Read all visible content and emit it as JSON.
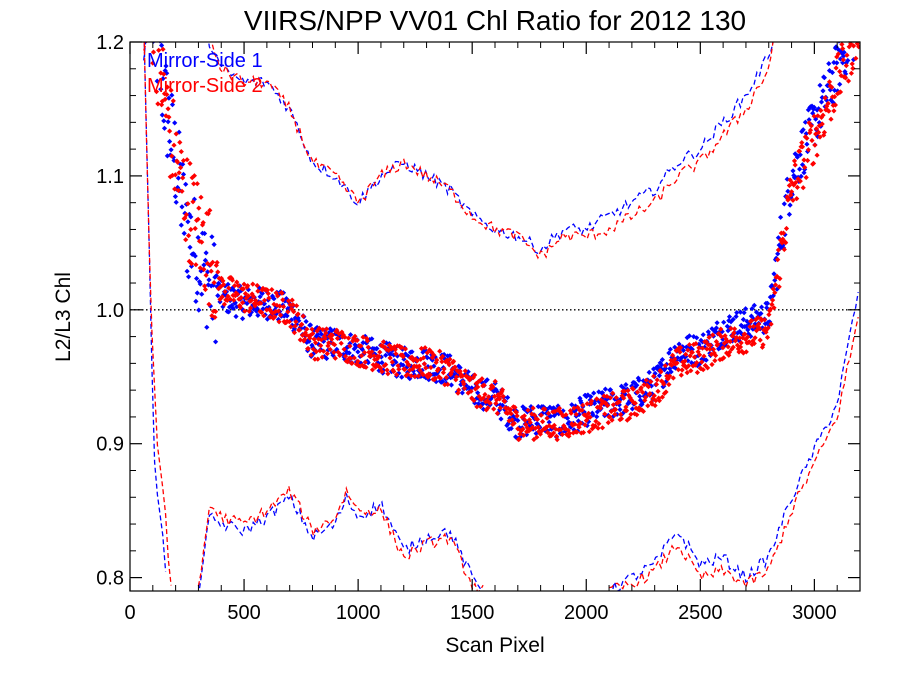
{
  "chart_data": {
    "type": "scatter",
    "title": "VIIRS/NPP VV01 Chl Ratio for 2012 130",
    "xlabel": "Scan Pixel",
    "ylabel": "L2/L3 Chl",
    "xlim": [
      0,
      3200
    ],
    "ylim": [
      0.79,
      1.2
    ],
    "x_ticks": [
      0,
      500,
      1000,
      1500,
      2000,
      2500,
      3000
    ],
    "x_tick_labels": [
      "0",
      "500",
      "1000",
      "1500",
      "2000",
      "2500",
      "3000"
    ],
    "y_ticks": [
      0.8,
      0.9,
      1.0,
      1.1,
      1.2
    ],
    "y_tick_labels": [
      "0.8",
      "0.9",
      "1.0",
      "1.1",
      "1.2"
    ],
    "reference_line": {
      "y": 1.0,
      "style": "dotted",
      "color": "#000000"
    },
    "legend": {
      "placement": "top-left"
    },
    "series": [
      {
        "name": "Mirror-Side 1",
        "color": "#0000ff",
        "marker": "diamond",
        "mean": [
          [
            100,
            1.22
          ],
          [
            150,
            1.16
          ],
          [
            200,
            1.11
          ],
          [
            250,
            1.06
          ],
          [
            300,
            1.04
          ],
          [
            350,
            1.02
          ],
          [
            400,
            1.01
          ],
          [
            500,
            1.005
          ],
          [
            600,
            1.005
          ],
          [
            700,
            1.0
          ],
          [
            800,
            0.975
          ],
          [
            900,
            0.975
          ],
          [
            1000,
            0.97
          ],
          [
            1100,
            0.965
          ],
          [
            1200,
            0.96
          ],
          [
            1300,
            0.96
          ],
          [
            1400,
            0.955
          ],
          [
            1500,
            0.94
          ],
          [
            1600,
            0.935
          ],
          [
            1700,
            0.915
          ],
          [
            1800,
            0.92
          ],
          [
            1900,
            0.915
          ],
          [
            2000,
            0.925
          ],
          [
            2100,
            0.93
          ],
          [
            2200,
            0.935
          ],
          [
            2300,
            0.945
          ],
          [
            2400,
            0.97
          ],
          [
            2500,
            0.97
          ],
          [
            2600,
            0.985
          ],
          [
            2700,
            0.99
          ],
          [
            2800,
            0.995
          ],
          [
            2850,
            1.05
          ],
          [
            2900,
            1.1
          ],
          [
            2950,
            1.12
          ],
          [
            3000,
            1.14
          ],
          [
            3050,
            1.16
          ],
          [
            3100,
            1.18
          ],
          [
            3150,
            1.2
          ],
          [
            3200,
            1.21
          ]
        ],
        "upper": [
          [
            60,
            1.19
          ],
          [
            90,
            1.22
          ],
          [
            150,
            1.24
          ],
          [
            200,
            1.25
          ],
          [
            300,
            1.22
          ],
          [
            400,
            1.18
          ],
          [
            500,
            1.17
          ],
          [
            600,
            1.17
          ],
          [
            700,
            1.15
          ],
          [
            800,
            1.11
          ],
          [
            900,
            1.1
          ],
          [
            1000,
            1.08
          ],
          [
            1100,
            1.1
          ],
          [
            1200,
            1.11
          ],
          [
            1300,
            1.1
          ],
          [
            1400,
            1.09
          ],
          [
            1500,
            1.07
          ],
          [
            1600,
            1.06
          ],
          [
            1700,
            1.055
          ],
          [
            1800,
            1.045
          ],
          [
            1900,
            1.06
          ],
          [
            2000,
            1.06
          ],
          [
            2100,
            1.07
          ],
          [
            2200,
            1.08
          ],
          [
            2300,
            1.09
          ],
          [
            2400,
            1.11
          ],
          [
            2500,
            1.12
          ],
          [
            2600,
            1.14
          ],
          [
            2700,
            1.16
          ],
          [
            2800,
            1.19
          ],
          [
            2830,
            1.21
          ]
        ],
        "lower_left": [
          [
            60,
            1.22
          ],
          [
            90,
            1.0
          ],
          [
            110,
            0.87
          ],
          [
            140,
            0.84
          ],
          [
            160,
            0.79
          ]
        ],
        "lower": [
          [
            300,
            0.79
          ],
          [
            350,
            0.845
          ],
          [
            400,
            0.84
          ],
          [
            500,
            0.835
          ],
          [
            600,
            0.845
          ],
          [
            700,
            0.86
          ],
          [
            800,
            0.83
          ],
          [
            900,
            0.84
          ],
          [
            950,
            0.86
          ],
          [
            1000,
            0.845
          ],
          [
            1100,
            0.855
          ],
          [
            1200,
            0.82
          ],
          [
            1300,
            0.83
          ],
          [
            1400,
            0.835
          ],
          [
            1500,
            0.8
          ],
          [
            1550,
            0.79
          ]
        ],
        "lower_right": [
          [
            2100,
            0.79
          ],
          [
            2200,
            0.8
          ],
          [
            2300,
            0.81
          ],
          [
            2400,
            0.835
          ],
          [
            2500,
            0.81
          ],
          [
            2600,
            0.815
          ],
          [
            2700,
            0.8
          ],
          [
            2800,
            0.815
          ],
          [
            2900,
            0.86
          ],
          [
            3000,
            0.895
          ],
          [
            3100,
            0.93
          ],
          [
            3200,
            1.02
          ]
        ]
      },
      {
        "name": "Mirror-Side 2",
        "color": "#ff0000",
        "marker": "diamond",
        "mean": [
          [
            100,
            1.22
          ],
          [
            150,
            1.16
          ],
          [
            200,
            1.11
          ],
          [
            250,
            1.08
          ],
          [
            300,
            1.06
          ],
          [
            350,
            1.04
          ],
          [
            400,
            1.015
          ],
          [
            500,
            1.01
          ],
          [
            600,
            1.005
          ],
          [
            700,
            1.0
          ],
          [
            800,
            0.975
          ],
          [
            900,
            0.975
          ],
          [
            1000,
            0.97
          ],
          [
            1100,
            0.965
          ],
          [
            1200,
            0.96
          ],
          [
            1300,
            0.96
          ],
          [
            1400,
            0.955
          ],
          [
            1500,
            0.94
          ],
          [
            1600,
            0.935
          ],
          [
            1700,
            0.915
          ],
          [
            1800,
            0.915
          ],
          [
            1900,
            0.915
          ],
          [
            2000,
            0.92
          ],
          [
            2100,
            0.925
          ],
          [
            2200,
            0.93
          ],
          [
            2300,
            0.94
          ],
          [
            2400,
            0.96
          ],
          [
            2500,
            0.965
          ],
          [
            2600,
            0.975
          ],
          [
            2700,
            0.98
          ],
          [
            2800,
            0.985
          ],
          [
            2850,
            1.04
          ],
          [
            2900,
            1.09
          ],
          [
            2950,
            1.11
          ],
          [
            3000,
            1.13
          ],
          [
            3050,
            1.15
          ],
          [
            3100,
            1.17
          ],
          [
            3150,
            1.19
          ],
          [
            3200,
            1.21
          ]
        ],
        "upper": [
          [
            60,
            1.19
          ],
          [
            90,
            1.22
          ],
          [
            150,
            1.24
          ],
          [
            200,
            1.25
          ],
          [
            300,
            1.22
          ],
          [
            400,
            1.18
          ],
          [
            500,
            1.17
          ],
          [
            600,
            1.17
          ],
          [
            700,
            1.15
          ],
          [
            800,
            1.11
          ],
          [
            900,
            1.1
          ],
          [
            1000,
            1.08
          ],
          [
            1100,
            1.1
          ],
          [
            1200,
            1.11
          ],
          [
            1300,
            1.1
          ],
          [
            1400,
            1.09
          ],
          [
            1500,
            1.07
          ],
          [
            1600,
            1.06
          ],
          [
            1700,
            1.055
          ],
          [
            1800,
            1.04
          ],
          [
            1900,
            1.055
          ],
          [
            2000,
            1.055
          ],
          [
            2100,
            1.06
          ],
          [
            2200,
            1.07
          ],
          [
            2300,
            1.08
          ],
          [
            2400,
            1.1
          ],
          [
            2500,
            1.11
          ],
          [
            2600,
            1.13
          ],
          [
            2700,
            1.15
          ],
          [
            2800,
            1.18
          ],
          [
            2830,
            1.21
          ]
        ],
        "lower_left": [
          [
            60,
            1.22
          ],
          [
            90,
            1.0
          ],
          [
            120,
            0.9
          ],
          [
            150,
            0.86
          ],
          [
            180,
            0.79
          ]
        ],
        "lower": [
          [
            300,
            0.79
          ],
          [
            350,
            0.855
          ],
          [
            400,
            0.845
          ],
          [
            500,
            0.84
          ],
          [
            600,
            0.85
          ],
          [
            700,
            0.865
          ],
          [
            800,
            0.835
          ],
          [
            900,
            0.845
          ],
          [
            950,
            0.865
          ],
          [
            1000,
            0.85
          ],
          [
            1100,
            0.85
          ],
          [
            1200,
            0.815
          ],
          [
            1300,
            0.825
          ],
          [
            1400,
            0.83
          ],
          [
            1500,
            0.795
          ],
          [
            1550,
            0.79
          ]
        ],
        "lower_right": [
          [
            2100,
            0.79
          ],
          [
            2200,
            0.795
          ],
          [
            2300,
            0.805
          ],
          [
            2400,
            0.825
          ],
          [
            2500,
            0.8
          ],
          [
            2600,
            0.805
          ],
          [
            2700,
            0.795
          ],
          [
            2800,
            0.805
          ],
          [
            2900,
            0.85
          ],
          [
            3000,
            0.885
          ],
          [
            3100,
            0.92
          ],
          [
            3200,
            1.0
          ]
        ]
      }
    ]
  }
}
